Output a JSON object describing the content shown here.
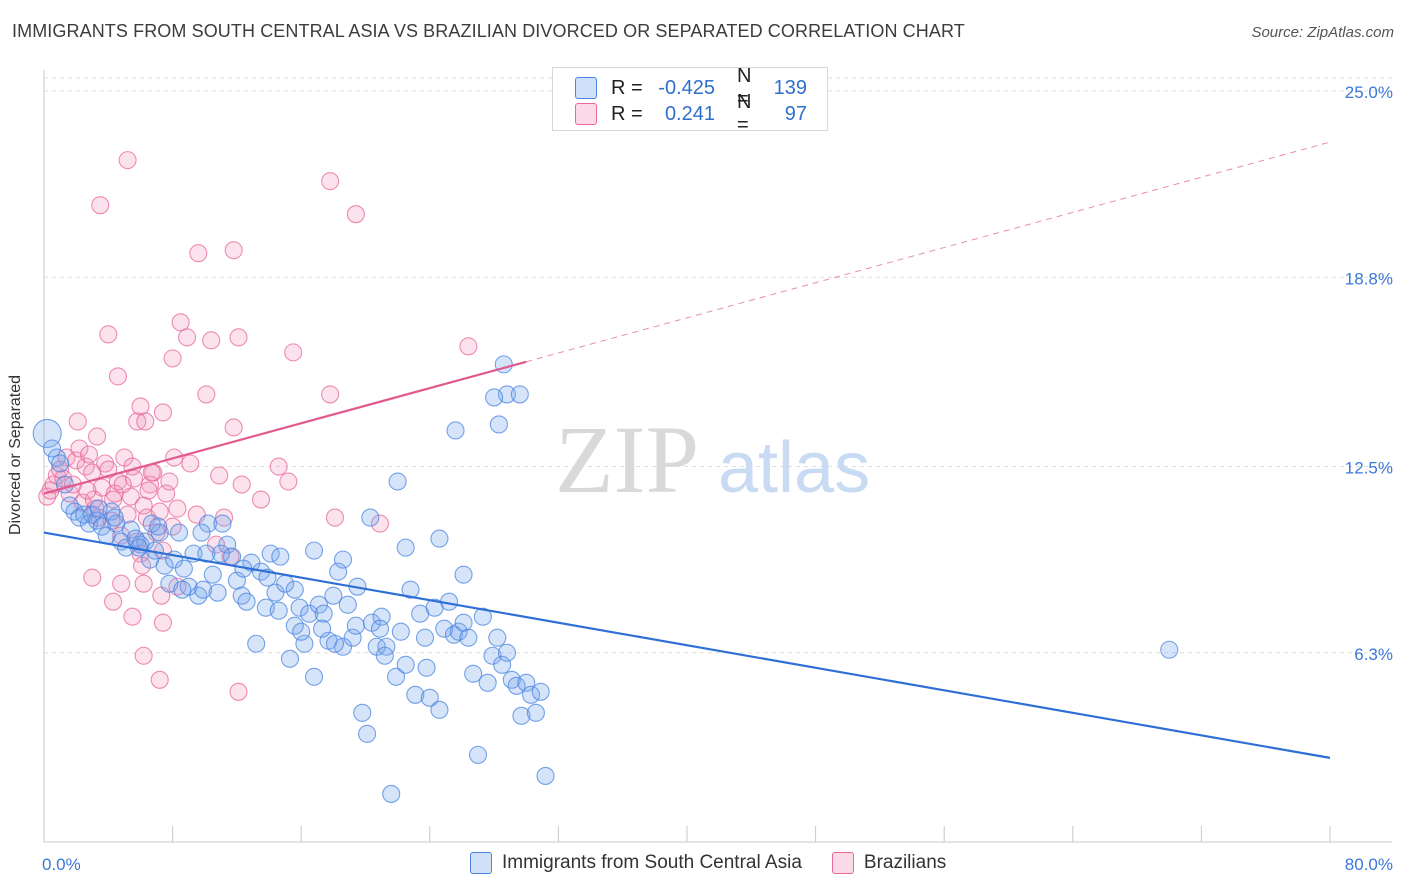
{
  "title": "IMMIGRANTS FROM SOUTH CENTRAL ASIA VS BRAZILIAN DIVORCED OR SEPARATED CORRELATION CHART",
  "source": "Source: ZipAtlas.com",
  "watermark": {
    "zip": "ZIP",
    "atlas": "atlas"
  },
  "colors": {
    "blue": "#4a86e0",
    "blue_fill": "rgba(120,165,235,0.30)",
    "pink": "#e8689a",
    "pink_fill": "rgba(240,150,185,0.28)",
    "tick_label": "#3b78d8",
    "grid": "#dddddd"
  },
  "legend_top": {
    "rows": [
      {
        "r_label": "R =",
        "r_value": "-0.425",
        "n_label": "N =",
        "n_value": "139",
        "color": "blue"
      },
      {
        "r_label": "R =",
        "r_value": "0.241",
        "n_label": "N =",
        "n_value": "97",
        "color": "pink"
      }
    ]
  },
  "legend_bottom": {
    "items": [
      {
        "label": "Immigrants from South Central Asia",
        "color": "blue"
      },
      {
        "label": "Brazilians",
        "color": "pink"
      }
    ]
  },
  "chart_data": {
    "type": "scatter",
    "ylabel": "Divorced or Separated",
    "x_tick_labels": [
      "0.0%",
      "80.0%"
    ],
    "y_tick_labels": [
      "6.3%",
      "12.5%",
      "18.8%",
      "25.0%"
    ],
    "xlim": [
      0,
      80
    ],
    "ylim": [
      0,
      25.7
    ],
    "y_ticks": [
      6.3,
      12.5,
      18.8,
      25.0
    ],
    "x_minor_ticks": [
      8,
      16,
      24,
      32,
      40,
      48,
      56,
      64,
      72,
      80
    ],
    "grid": "horizontal dashed",
    "legend": "top-center and bottom",
    "series": [
      {
        "name": "Immigrants from South Central Asia",
        "color": "blue",
        "trend": {
          "x0": 0,
          "y0": 10.3,
          "x1": 80,
          "y1": 2.8,
          "style": "solid"
        },
        "points": [
          [
            0.2,
            13.6
          ],
          [
            0.5,
            13.1
          ],
          [
            0.8,
            12.8
          ],
          [
            1.0,
            12.6
          ],
          [
            1.3,
            11.9
          ],
          [
            1.6,
            11.2
          ],
          [
            1.9,
            11.0
          ],
          [
            2.2,
            10.8
          ],
          [
            2.5,
            10.9
          ],
          [
            2.8,
            10.6
          ],
          [
            3.0,
            10.9
          ],
          [
            3.3,
            10.7
          ],
          [
            3.6,
            10.5
          ],
          [
            3.9,
            10.2
          ],
          [
            4.2,
            11.0
          ],
          [
            4.5,
            10.6
          ],
          [
            4.8,
            10.0
          ],
          [
            5.1,
            9.8
          ],
          [
            5.4,
            10.4
          ],
          [
            5.7,
            10.1
          ],
          [
            6.0,
            9.9
          ],
          [
            6.3,
            10.0
          ],
          [
            6.6,
            9.4
          ],
          [
            6.9,
            9.7
          ],
          [
            7.2,
            10.3
          ],
          [
            7.5,
            9.2
          ],
          [
            7.8,
            8.6
          ],
          [
            8.1,
            9.4
          ],
          [
            8.4,
            10.3
          ],
          [
            8.7,
            9.1
          ],
          [
            9.0,
            8.5
          ],
          [
            9.3,
            9.6
          ],
          [
            9.6,
            8.2
          ],
          [
            9.9,
            8.4
          ],
          [
            10.2,
            10.6
          ],
          [
            10.5,
            8.9
          ],
          [
            10.8,
            8.3
          ],
          [
            11.1,
            10.6
          ],
          [
            11.4,
            9.9
          ],
          [
            11.7,
            9.5
          ],
          [
            12.0,
            8.7
          ],
          [
            12.3,
            8.2
          ],
          [
            12.6,
            8.0
          ],
          [
            12.9,
            9.3
          ],
          [
            13.2,
            6.6
          ],
          [
            13.5,
            9.0
          ],
          [
            13.8,
            7.8
          ],
          [
            14.1,
            9.6
          ],
          [
            14.4,
            8.3
          ],
          [
            14.7,
            9.5
          ],
          [
            15.0,
            8.6
          ],
          [
            15.3,
            6.1
          ],
          [
            15.6,
            7.2
          ],
          [
            15.9,
            7.8
          ],
          [
            16.2,
            6.6
          ],
          [
            16.5,
            7.6
          ],
          [
            16.8,
            5.5
          ],
          [
            17.1,
            7.9
          ],
          [
            17.4,
            7.6
          ],
          [
            17.7,
            6.7
          ],
          [
            18.0,
            8.2
          ],
          [
            18.3,
            9.0
          ],
          [
            18.6,
            6.5
          ],
          [
            18.9,
            7.9
          ],
          [
            19.2,
            6.8
          ],
          [
            19.5,
            8.5
          ],
          [
            19.8,
            4.3
          ],
          [
            20.1,
            3.6
          ],
          [
            20.4,
            7.3
          ],
          [
            20.7,
            6.5
          ],
          [
            21.0,
            7.5
          ],
          [
            21.3,
            6.5
          ],
          [
            21.6,
            1.6
          ],
          [
            21.9,
            5.5
          ],
          [
            22.2,
            7.0
          ],
          [
            22.5,
            5.9
          ],
          [
            22.8,
            8.4
          ],
          [
            23.1,
            4.9
          ],
          [
            23.4,
            7.6
          ],
          [
            23.7,
            6.8
          ],
          [
            24.0,
            4.8
          ],
          [
            24.3,
            7.8
          ],
          [
            24.6,
            4.4
          ],
          [
            24.9,
            7.1
          ],
          [
            25.2,
            8.0
          ],
          [
            25.5,
            6.9
          ],
          [
            25.8,
            7.0
          ],
          [
            26.1,
            7.3
          ],
          [
            26.4,
            6.8
          ],
          [
            26.7,
            5.6
          ],
          [
            27.0,
            2.9
          ],
          [
            27.3,
            7.5
          ],
          [
            27.6,
            5.3
          ],
          [
            27.9,
            6.2
          ],
          [
            28.2,
            6.8
          ],
          [
            28.5,
            5.9
          ],
          [
            28.8,
            6.3
          ],
          [
            29.1,
            5.4
          ],
          [
            29.4,
            5.2
          ],
          [
            29.7,
            4.2
          ],
          [
            30.0,
            5.3
          ],
          [
            30.3,
            4.9
          ],
          [
            30.6,
            4.3
          ],
          [
            30.9,
            5.0
          ],
          [
            31.2,
            2.2
          ],
          [
            28.6,
            15.9
          ],
          [
            28.8,
            14.9
          ],
          [
            29.6,
            14.9
          ],
          [
            28.0,
            14.8
          ],
          [
            28.3,
            13.9
          ],
          [
            25.6,
            13.7
          ],
          [
            22.0,
            12.0
          ],
          [
            20.3,
            10.8
          ],
          [
            22.5,
            9.8
          ],
          [
            24.6,
            10.1
          ],
          [
            26.1,
            8.9
          ],
          [
            16.8,
            9.7
          ],
          [
            18.6,
            9.4
          ],
          [
            6.7,
            10.6
          ],
          [
            7.1,
            10.5
          ],
          [
            70.0,
            6.4
          ],
          [
            9.8,
            10.3
          ],
          [
            11.0,
            9.6
          ],
          [
            13.9,
            8.8
          ],
          [
            15.6,
            8.4
          ],
          [
            17.3,
            7.1
          ],
          [
            19.4,
            7.2
          ],
          [
            21.2,
            6.2
          ],
          [
            23.8,
            5.8
          ],
          [
            3.4,
            11.1
          ],
          [
            4.4,
            10.8
          ],
          [
            5.9,
            9.8
          ],
          [
            8.6,
            8.4
          ],
          [
            10.1,
            9.6
          ],
          [
            12.4,
            9.1
          ],
          [
            14.6,
            7.7
          ],
          [
            16.0,
            7.0
          ],
          [
            18.1,
            6.6
          ],
          [
            20.9,
            7.1
          ]
        ]
      },
      {
        "name": "Brazilians",
        "color": "pink",
        "trend": {
          "x0": 0,
          "y0": 11.6,
          "x1": 80,
          "y1": 23.3,
          "solid_until": 30,
          "style": "solid then dashed"
        },
        "points": [
          [
            0.2,
            11.5
          ],
          [
            0.4,
            11.7
          ],
          [
            0.6,
            11.9
          ],
          [
            0.8,
            12.2
          ],
          [
            1.0,
            12.4
          ],
          [
            1.2,
            12.1
          ],
          [
            1.4,
            12.8
          ],
          [
            1.6,
            11.6
          ],
          [
            1.8,
            11.9
          ],
          [
            2.0,
            12.7
          ],
          [
            2.2,
            13.1
          ],
          [
            2.4,
            11.3
          ],
          [
            2.6,
            12.5
          ],
          [
            2.8,
            12.9
          ],
          [
            3.0,
            12.3
          ],
          [
            3.2,
            11.1
          ],
          [
            3.4,
            10.8
          ],
          [
            3.6,
            11.8
          ],
          [
            3.8,
            12.6
          ],
          [
            4.0,
            12.4
          ],
          [
            4.2,
            10.7
          ],
          [
            4.4,
            11.6
          ],
          [
            4.6,
            12.0
          ],
          [
            4.8,
            10.2
          ],
          [
            5.0,
            12.8
          ],
          [
            5.2,
            10.9
          ],
          [
            5.4,
            11.5
          ],
          [
            5.6,
            12.1
          ],
          [
            5.8,
            10.0
          ],
          [
            6.0,
            9.6
          ],
          [
            6.2,
            11.2
          ],
          [
            6.4,
            10.8
          ],
          [
            6.6,
            11.9
          ],
          [
            6.8,
            12.3
          ],
          [
            7.0,
            10.3
          ],
          [
            7.2,
            11.0
          ],
          [
            7.4,
            9.7
          ],
          [
            7.6,
            11.6
          ],
          [
            7.8,
            12.0
          ],
          [
            8.0,
            10.5
          ],
          [
            3.5,
            21.2
          ],
          [
            5.2,
            22.7
          ],
          [
            9.6,
            19.6
          ],
          [
            11.8,
            19.7
          ],
          [
            17.8,
            22.0
          ],
          [
            19.4,
            20.9
          ],
          [
            8.5,
            17.3
          ],
          [
            8.9,
            16.8
          ],
          [
            10.4,
            16.7
          ],
          [
            12.1,
            16.8
          ],
          [
            15.5,
            16.3
          ],
          [
            26.4,
            16.5
          ],
          [
            4.0,
            16.9
          ],
          [
            8.0,
            16.1
          ],
          [
            4.6,
            15.5
          ],
          [
            10.1,
            14.9
          ],
          [
            17.8,
            14.9
          ],
          [
            6.0,
            14.5
          ],
          [
            7.4,
            14.3
          ],
          [
            5.8,
            14.0
          ],
          [
            6.3,
            14.0
          ],
          [
            11.8,
            13.8
          ],
          [
            2.1,
            14.0
          ],
          [
            3.3,
            13.5
          ],
          [
            9.1,
            12.6
          ],
          [
            14.6,
            12.5
          ],
          [
            10.9,
            12.2
          ],
          [
            15.2,
            12.0
          ],
          [
            5.5,
            12.5
          ],
          [
            3.1,
            11.4
          ],
          [
            4.3,
            11.4
          ],
          [
            6.5,
            11.7
          ],
          [
            8.3,
            11.1
          ],
          [
            9.5,
            10.9
          ],
          [
            12.3,
            11.9
          ],
          [
            13.5,
            11.4
          ],
          [
            8.1,
            12.8
          ],
          [
            6.7,
            12.3
          ],
          [
            4.9,
            11.9
          ],
          [
            2.7,
            11.7
          ],
          [
            6.1,
            9.2
          ],
          [
            5.5,
            7.5
          ],
          [
            4.3,
            8.0
          ],
          [
            3.0,
            8.8
          ],
          [
            4.8,
            8.6
          ],
          [
            6.2,
            8.6
          ],
          [
            7.4,
            7.3
          ],
          [
            8.3,
            8.5
          ],
          [
            7.3,
            8.2
          ],
          [
            6.2,
            6.2
          ],
          [
            7.2,
            5.4
          ],
          [
            12.1,
            5.0
          ],
          [
            11.6,
            9.5
          ],
          [
            10.7,
            9.9
          ],
          [
            11.2,
            10.8
          ],
          [
            18.1,
            10.8
          ],
          [
            20.9,
            10.6
          ]
        ]
      }
    ]
  }
}
